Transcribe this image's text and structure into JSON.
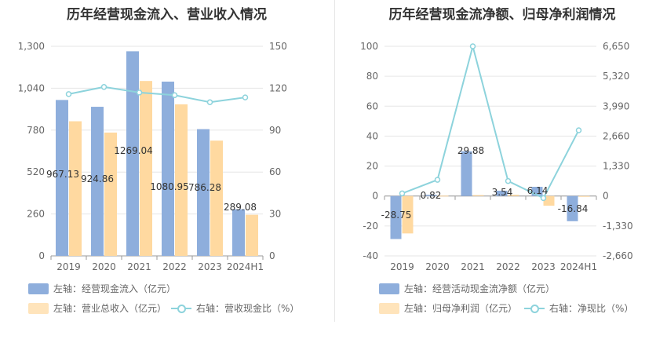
{
  "colors": {
    "blue": "#8eaedc",
    "orange": "#ffd9a0",
    "teal": "#8dd3dc",
    "grid": "#e6e6e6",
    "axis": "#999999"
  },
  "chart_data": [
    {
      "type": "bar",
      "title": "历年经营现金流入、营业收入情况",
      "categories": [
        "2019",
        "2020",
        "2021",
        "2022",
        "2023",
        "2024H1"
      ],
      "ylim_left": [
        0,
        1300
      ],
      "yticks_left": [
        "0",
        "260",
        "520",
        "780",
        "1,040",
        "1,300"
      ],
      "ylim_right": [
        0,
        150
      ],
      "yticks_right": [
        "0",
        "30",
        "60",
        "90",
        "120",
        "150"
      ],
      "series": [
        {
          "name": "左轴：经营现金流入（亿元）",
          "kind": "bar",
          "axis": "left",
          "values": [
            967.13,
            924.86,
            1269.04,
            1080.95,
            786.28,
            289.08
          ],
          "labels": [
            "967.13",
            "924.86",
            "1269.04",
            "1080.95",
            "786.28",
            "289.08"
          ]
        },
        {
          "name": "左轴：营业总收入（亿元）",
          "kind": "bar",
          "axis": "left",
          "values": [
            835,
            765,
            1085,
            940,
            715,
            255
          ]
        },
        {
          "name": "右轴：营收现金比（%）",
          "kind": "line",
          "axis": "right",
          "values": [
            115.8,
            120.9,
            116.9,
            115.0,
            110.0,
            113.4
          ]
        }
      ]
    },
    {
      "type": "bar",
      "title": "历年经营现金流净额、归母净利润情况",
      "categories": [
        "2019",
        "2020",
        "2021",
        "2022",
        "2023",
        "2024H1"
      ],
      "ylim_left": [
        -40,
        100
      ],
      "yticks_left": [
        "-40",
        "-20",
        "0",
        "20",
        "40",
        "60",
        "80",
        "100"
      ],
      "ylim_right": [
        -2660,
        6650
      ],
      "yticks_right": [
        "-2,660",
        "-1,330",
        "0",
        "1,330",
        "2,660",
        "3,990",
        "5,320",
        "6,650"
      ],
      "series": [
        {
          "name": "左轴：经营活动现金流净额（亿元）",
          "kind": "bar",
          "axis": "left",
          "values": [
            -28.75,
            0.82,
            29.88,
            3.54,
            6.14,
            -16.84
          ],
          "labels": [
            "-28.75",
            "0.82",
            "29.88",
            "3.54",
            "6.14",
            "-16.84"
          ]
        },
        {
          "name": "左轴：归母净利润（亿元）",
          "kind": "bar",
          "axis": "left",
          "values": [
            -25.0,
            0.2,
            0.6,
            0.8,
            -6.5,
            -0.3
          ]
        },
        {
          "name": "右轴：净现比（%）",
          "kind": "line",
          "axis": "right",
          "values": [
            115,
            720,
            6650,
            665,
            -94,
            2920
          ]
        }
      ]
    }
  ]
}
